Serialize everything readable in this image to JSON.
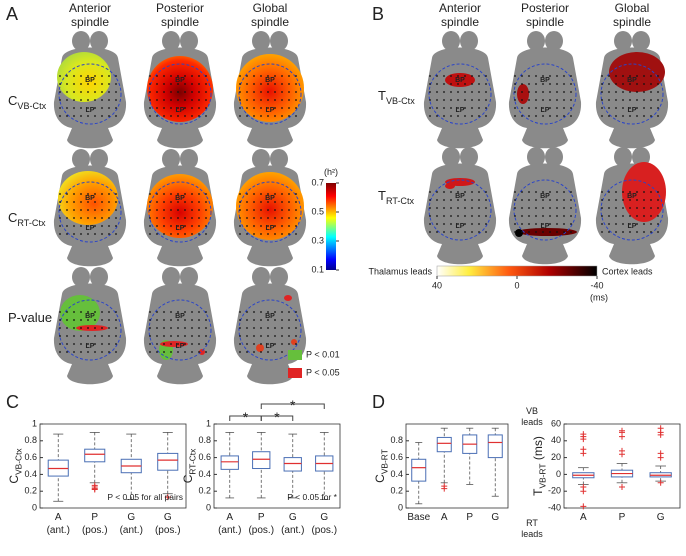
{
  "panel_a": {
    "label": "A",
    "columns": [
      [
        "Anterior",
        "spindle"
      ],
      [
        "Posterior",
        "spindle"
      ],
      [
        "Global",
        "spindle"
      ]
    ],
    "rows": [
      {
        "main": "C",
        "sub": "VB-Ctx"
      },
      {
        "main": "C",
        "sub": "RT-Ctx"
      },
      {
        "main": "P-value"
      }
    ],
    "colorbar": {
      "title": "(h²)",
      "lim": [
        0.1,
        0.7
      ],
      "ticks": [
        0.7,
        0.5,
        0.3,
        0.1
      ]
    },
    "legend": [
      {
        "label": "P < 0.01",
        "color": "#66bf3c"
      },
      {
        "label": "P < 0.05",
        "color": "#e02424"
      }
    ]
  },
  "panel_b": {
    "label": "B",
    "columns": [
      [
        "Anterior",
        "spindle"
      ],
      [
        "Posterior",
        "spindle"
      ],
      [
        "Global",
        "spindle"
      ]
    ],
    "rows": [
      {
        "main": "T",
        "sub": "VB-Ctx"
      },
      {
        "main": "T",
        "sub": "RT-Ctx"
      }
    ],
    "colorbar": {
      "left_label": "Thalamus leads",
      "right_label": "Cortex leads",
      "unit": "(ms)",
      "lim": [
        40,
        -40
      ],
      "ticks": [
        40,
        0,
        -40
      ]
    }
  },
  "brain_labels": {
    "bp": "BP",
    "lp": "LP"
  },
  "panel_c": {
    "label": "C"
  },
  "panel_d": {
    "label": "D"
  },
  "chart_data": [
    {
      "type": "box",
      "ylabel": {
        "main": "C",
        "sub": "VB-Ctx"
      },
      "categories": [
        "A",
        "P",
        "G",
        "G"
      ],
      "category_notes": [
        "(ant.)",
        "(pos.)",
        "(ant.)",
        "(pos.)"
      ],
      "ylim": [
        0,
        1
      ],
      "yticks": [
        0,
        0.2,
        0.4,
        0.6,
        0.8,
        1
      ],
      "annotation": "P < 0.05 for all pairs",
      "box_color": "#4a6fb5",
      "median_color": "#e03030",
      "boxes": [
        {
          "min": 0.08,
          "q1": 0.38,
          "median": 0.47,
          "q3": 0.57,
          "max": 0.88,
          "outliers": []
        },
        {
          "min": 0.3,
          "q1": 0.55,
          "median": 0.64,
          "q3": 0.7,
          "max": 0.9,
          "outliers": [
            0.27,
            0.25,
            0.23,
            0.22
          ]
        },
        {
          "min": 0.1,
          "q1": 0.42,
          "median": 0.5,
          "q3": 0.58,
          "max": 0.88,
          "outliers": []
        },
        {
          "min": 0.17,
          "q1": 0.45,
          "median": 0.57,
          "q3": 0.65,
          "max": 0.9,
          "outliers": [
            0.13
          ]
        }
      ]
    },
    {
      "type": "box",
      "ylabel": {
        "main": "C",
        "sub": "RT-Ctx"
      },
      "categories": [
        "A",
        "P",
        "G",
        "G"
      ],
      "category_notes": [
        "(ant.)",
        "(pos.)",
        "(ant.)",
        "(pos.)"
      ],
      "ylim": [
        0,
        1
      ],
      "yticks": [
        0,
        0.2,
        0.4,
        0.6,
        0.8,
        1
      ],
      "annotation": "P < 0.05 for *",
      "box_color": "#4a6fb5",
      "median_color": "#e03030",
      "brackets": [
        {
          "from": 0,
          "to": 1,
          "label": "*"
        },
        {
          "from": 1,
          "to": 2,
          "label": "*"
        },
        {
          "from": 1,
          "to": 3,
          "label": "*"
        }
      ],
      "boxes": [
        {
          "min": 0.12,
          "q1": 0.46,
          "median": 0.55,
          "q3": 0.62,
          "max": 0.9,
          "outliers": []
        },
        {
          "min": 0.12,
          "q1": 0.47,
          "median": 0.58,
          "q3": 0.67,
          "max": 0.9,
          "outliers": []
        },
        {
          "min": 0.12,
          "q1": 0.44,
          "median": 0.53,
          "q3": 0.6,
          "max": 0.88,
          "outliers": []
        },
        {
          "min": 0.1,
          "q1": 0.44,
          "median": 0.53,
          "q3": 0.62,
          "max": 0.9,
          "outliers": []
        }
      ]
    },
    {
      "type": "box",
      "ylabel": {
        "main": "C",
        "sub": "VB-RT"
      },
      "categories": [
        "Base",
        "A",
        "P",
        "G"
      ],
      "ylim": [
        0,
        1
      ],
      "yticks": [
        0,
        0.2,
        0.4,
        0.6,
        0.8
      ],
      "box_color": "#4a6fb5",
      "median_color": "#e03030",
      "boxes": [
        {
          "min": 0.05,
          "q1": 0.32,
          "median": 0.48,
          "q3": 0.58,
          "max": 0.78,
          "outliers": []
        },
        {
          "min": 0.3,
          "q1": 0.67,
          "median": 0.77,
          "q3": 0.84,
          "max": 0.95,
          "outliers": [
            0.26,
            0.23
          ]
        },
        {
          "min": 0.28,
          "q1": 0.65,
          "median": 0.76,
          "q3": 0.87,
          "max": 0.95,
          "outliers": []
        },
        {
          "min": 0.14,
          "q1": 0.6,
          "median": 0.78,
          "q3": 0.87,
          "max": 0.95,
          "outliers": []
        }
      ]
    },
    {
      "type": "box",
      "ylabel": {
        "main": "T",
        "sub": "VB-RT",
        "unit": " (ms)"
      },
      "categories": [
        "A",
        "P",
        "G"
      ],
      "top_note": [
        "VB",
        "leads"
      ],
      "bottom_note": [
        "RT",
        "leads"
      ],
      "ylim": [
        -40,
        60
      ],
      "yticks": [
        -40,
        -20,
        0,
        20,
        40,
        60
      ],
      "box_color": "#4a6fb5",
      "median_color": "#e03030",
      "boxes": [
        {
          "min": -12,
          "q1": -4,
          "median": -1,
          "q3": 2,
          "max": 8,
          "outliers": [
            48,
            45,
            42,
            30,
            25,
            -15,
            -20,
            -38
          ]
        },
        {
          "min": -10,
          "q1": -3,
          "median": 1,
          "q3": 5,
          "max": 13,
          "outliers": [
            52,
            50,
            45,
            28,
            24,
            -15
          ]
        },
        {
          "min": -8,
          "q1": -3,
          "median": -1,
          "q3": 2,
          "max": 10,
          "outliers": [
            55,
            50,
            47,
            25,
            20,
            -10
          ]
        }
      ]
    }
  ]
}
